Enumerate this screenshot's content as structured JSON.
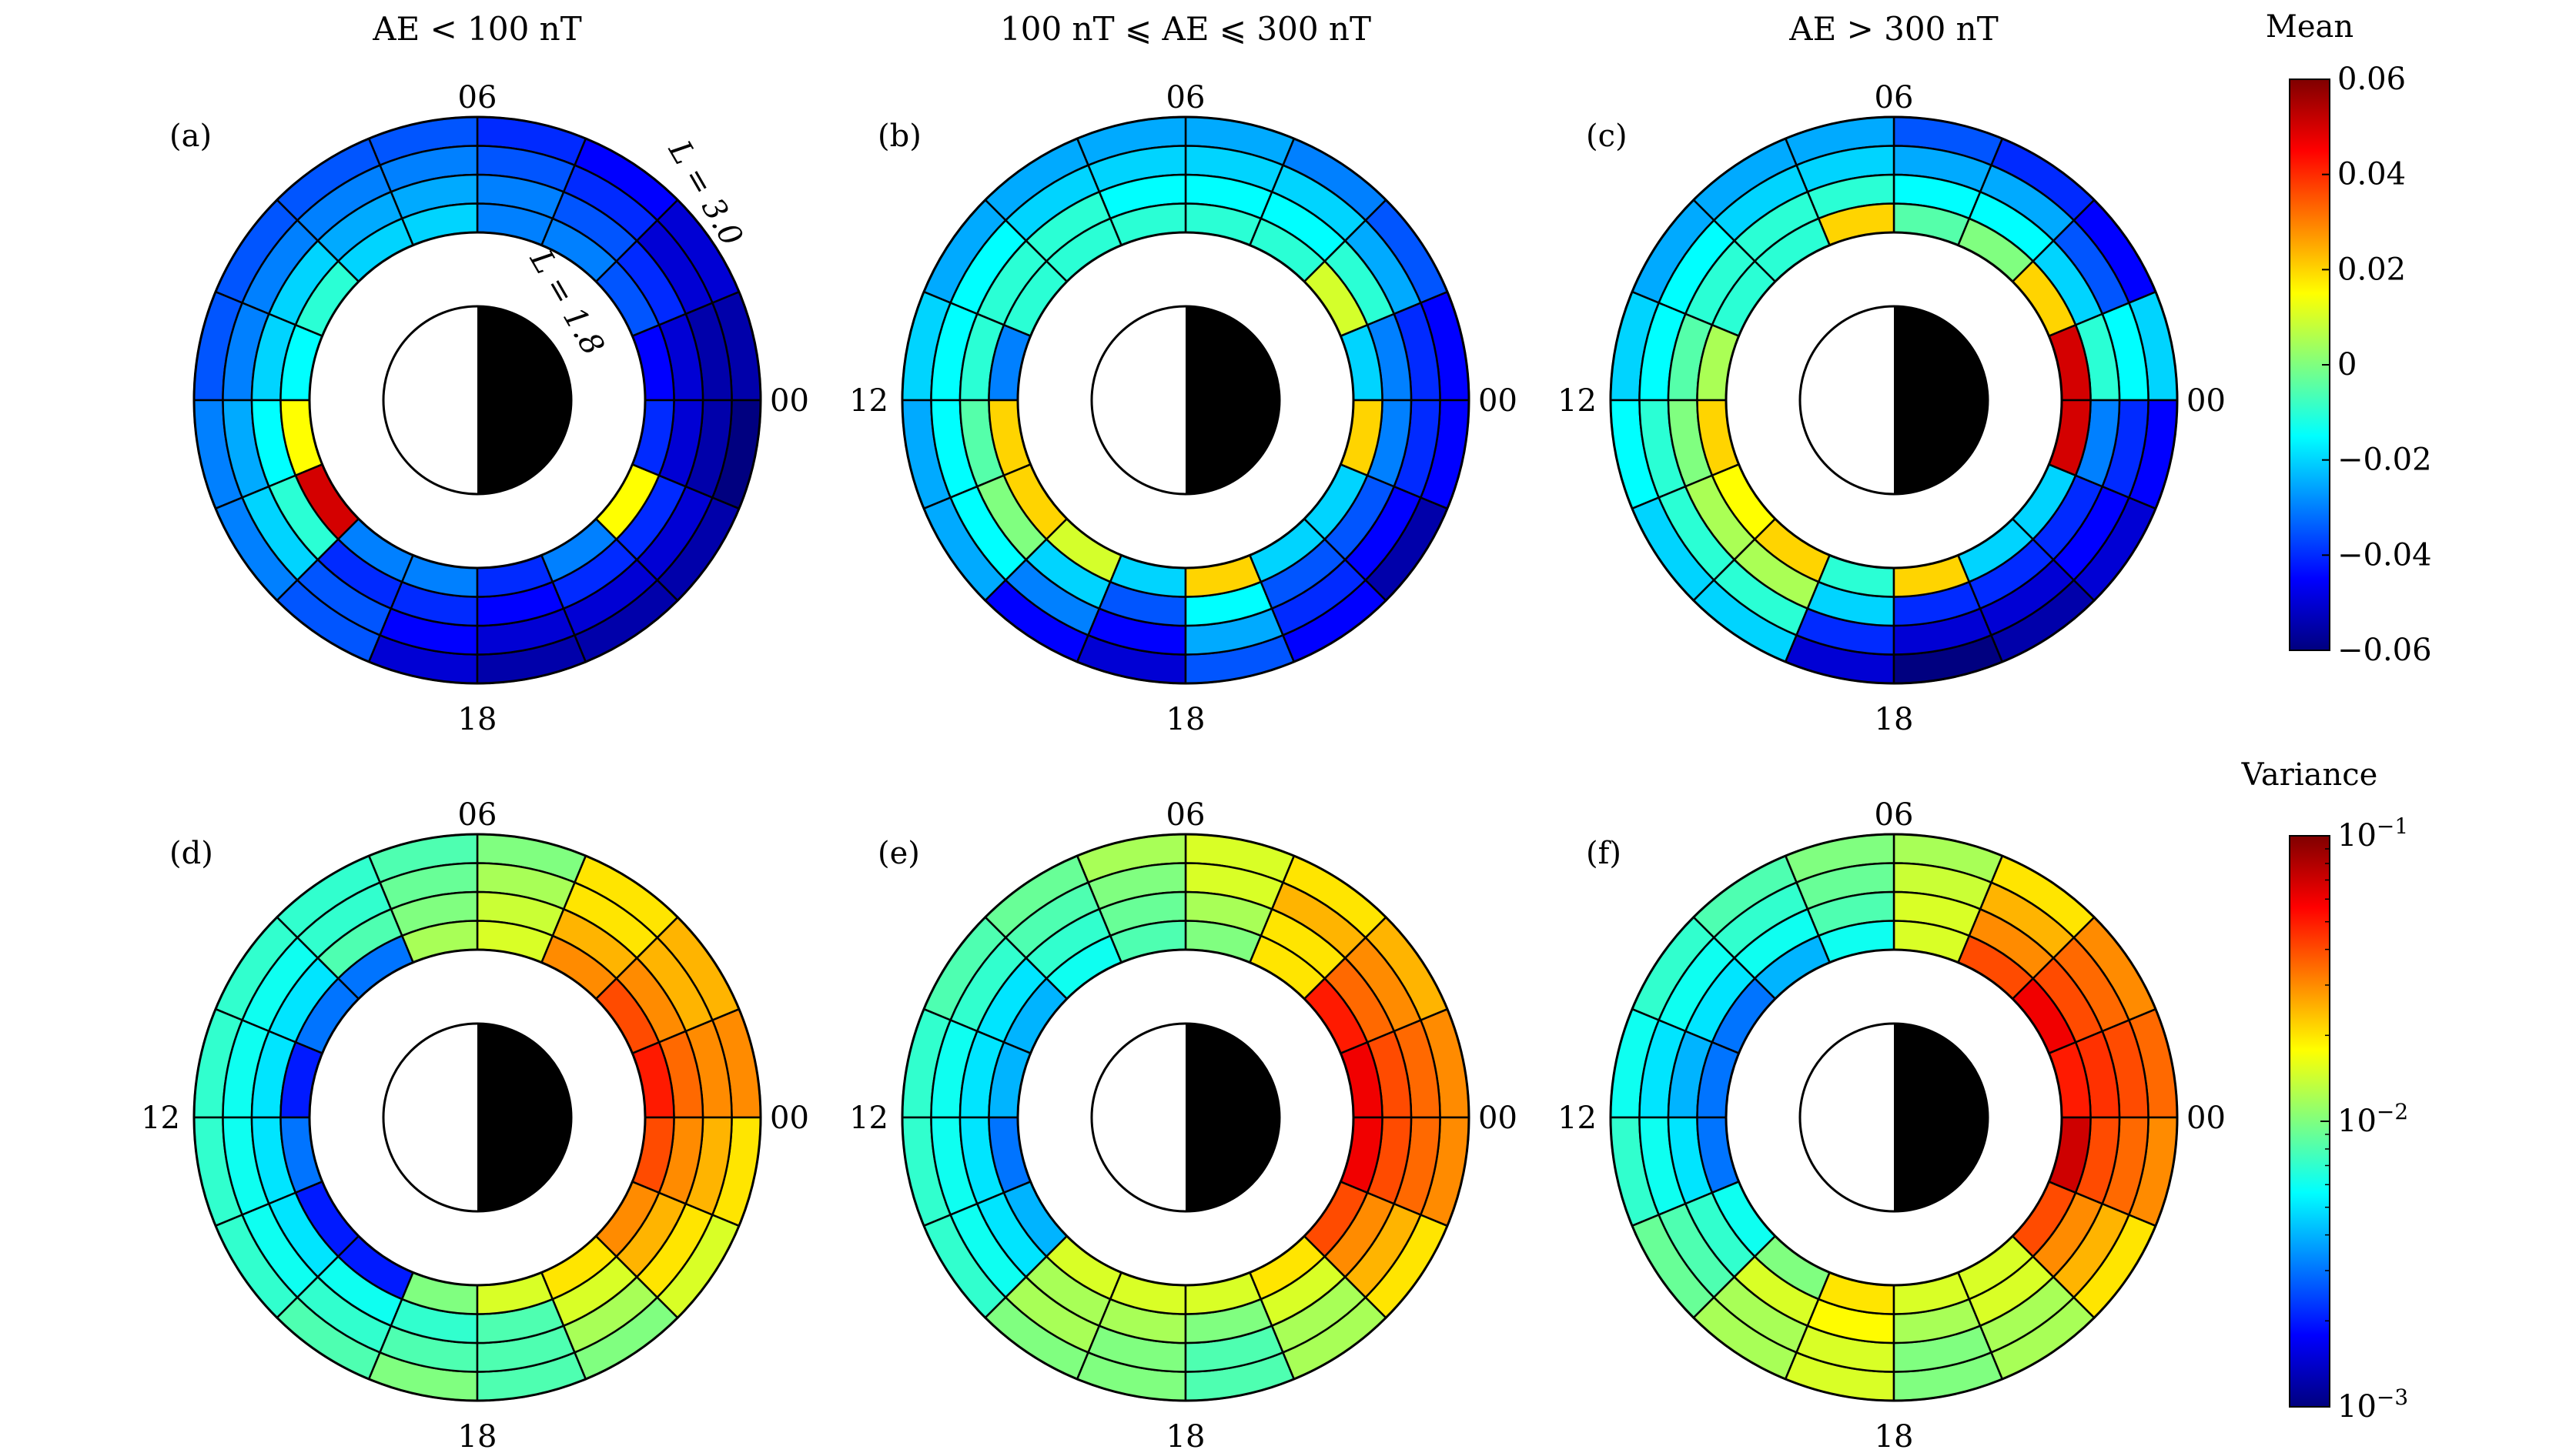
{
  "columns": [
    {
      "title": "AE < 100 nT"
    },
    {
      "title": "100 nT ⩽ AE ⩽ 300 nT"
    },
    {
      "title": "AE > 300 nT"
    }
  ],
  "colorbars": {
    "mean": {
      "label": "Mean",
      "ticks": [
        "0.06",
        "0.04",
        "0.02",
        "0",
        "−0.02",
        "−0.04",
        "−0.06"
      ]
    },
    "variance": {
      "label": "Variance",
      "ticks": [
        {
          "base": "10",
          "exp": "−1"
        },
        {
          "base": "10",
          "exp": "−2"
        },
        {
          "base": "10",
          "exp": "−3"
        }
      ]
    }
  },
  "annotations": {
    "outer_l": "L = 3.0",
    "inner_l": "L = 1.8"
  },
  "chart_data": [
    {
      "panel": "(a)",
      "type": "heatmap",
      "projection": "polar-MLT-L",
      "mlt_labels": {
        "top": "06",
        "left": "",
        "right": "00",
        "bottom": "18"
      },
      "l_range": [
        1.8,
        3.0
      ],
      "mlt_bins": 16,
      "l_bins": 4,
      "scale": "mean",
      "values": [
        [
          -0.055,
          -0.055,
          -0.05,
          -0.045
        ],
        [
          -0.05,
          -0.05,
          -0.04,
          -0.035
        ],
        [
          -0.045,
          -0.04,
          -0.035,
          -0.03
        ],
        [
          -0.04,
          -0.035,
          -0.03,
          -0.03
        ],
        [
          -0.035,
          -0.03,
          -0.025,
          -0.02
        ],
        [
          -0.035,
          -0.03,
          -0.025,
          -0.02
        ],
        [
          -0.035,
          -0.03,
          -0.02,
          -0.01
        ],
        [
          -0.035,
          -0.03,
          -0.02,
          -0.015
        ],
        [
          -0.03,
          -0.025,
          -0.015,
          0.015
        ],
        [
          -0.03,
          -0.02,
          -0.01,
          0.05
        ],
        [
          -0.035,
          -0.035,
          -0.04,
          -0.03
        ],
        [
          -0.05,
          -0.045,
          -0.04,
          -0.03
        ],
        [
          -0.055,
          -0.05,
          -0.045,
          -0.04
        ],
        [
          -0.055,
          -0.05,
          -0.04,
          -0.03
        ],
        [
          -0.055,
          -0.05,
          -0.04,
          0.015
        ],
        [
          -0.06,
          -0.055,
          -0.05,
          -0.04
        ]
      ]
    },
    {
      "panel": "(b)",
      "type": "heatmap",
      "projection": "polar-MLT-L",
      "mlt_labels": {
        "top": "06",
        "left": "12",
        "right": "00",
        "bottom": "18"
      },
      "l_range": [
        1.8,
        3.0
      ],
      "mlt_bins": 16,
      "l_bins": 4,
      "scale": "mean",
      "values": [
        [
          -0.045,
          -0.04,
          -0.03,
          -0.02
        ],
        [
          -0.035,
          -0.025,
          -0.01,
          0.01
        ],
        [
          -0.03,
          -0.02,
          -0.015,
          -0.01
        ],
        [
          -0.025,
          -0.02,
          -0.015,
          -0.01
        ],
        [
          -0.025,
          -0.02,
          -0.015,
          -0.01
        ],
        [
          -0.025,
          -0.02,
          -0.01,
          -0.01
        ],
        [
          -0.025,
          -0.015,
          -0.01,
          -0.01
        ],
        [
          -0.02,
          -0.015,
          -0.01,
          -0.03
        ],
        [
          -0.025,
          -0.015,
          -0.005,
          0.02
        ],
        [
          -0.025,
          -0.015,
          0.0,
          0.02
        ],
        [
          -0.045,
          -0.03,
          -0.02,
          0.01
        ],
        [
          -0.05,
          -0.045,
          -0.035,
          -0.02
        ],
        [
          -0.035,
          -0.025,
          -0.015,
          0.02
        ],
        [
          -0.045,
          -0.04,
          -0.035,
          -0.02
        ],
        [
          -0.055,
          -0.045,
          -0.035,
          -0.02
        ],
        [
          -0.045,
          -0.04,
          -0.03,
          0.02
        ]
      ]
    },
    {
      "panel": "(c)",
      "type": "heatmap",
      "projection": "polar-MLT-L",
      "mlt_labels": {
        "top": "06",
        "left": "12",
        "right": "00",
        "bottom": "18"
      },
      "l_range": [
        1.8,
        3.0
      ],
      "mlt_bins": 16,
      "l_bins": 4,
      "scale": "mean",
      "values": [
        [
          -0.02,
          -0.015,
          -0.01,
          0.05
        ],
        [
          -0.045,
          -0.035,
          -0.02,
          0.02
        ],
        [
          -0.04,
          -0.025,
          -0.015,
          0.0
        ],
        [
          -0.035,
          -0.025,
          -0.015,
          -0.005
        ],
        [
          -0.025,
          -0.02,
          -0.01,
          0.02
        ],
        [
          -0.025,
          -0.02,
          -0.01,
          -0.01
        ],
        [
          -0.025,
          -0.015,
          -0.01,
          -0.01
        ],
        [
          -0.02,
          -0.015,
          -0.005,
          0.005
        ],
        [
          -0.015,
          -0.01,
          0.0,
          0.02
        ],
        [
          -0.02,
          -0.01,
          0.005,
          0.015
        ],
        [
          -0.02,
          -0.01,
          0.005,
          0.02
        ],
        [
          -0.05,
          -0.04,
          -0.02,
          -0.01
        ],
        [
          -0.06,
          -0.05,
          -0.04,
          0.02
        ],
        [
          -0.055,
          -0.05,
          -0.04,
          -0.02
        ],
        [
          -0.05,
          -0.045,
          -0.04,
          -0.02
        ],
        [
          -0.045,
          -0.04,
          -0.03,
          0.05
        ]
      ]
    },
    {
      "panel": "(d)",
      "type": "heatmap",
      "projection": "polar-MLT-L",
      "mlt_labels": {
        "top": "06",
        "left": "12",
        "right": "00",
        "bottom": "18"
      },
      "l_range": [
        1.8,
        3.0
      ],
      "mlt_bins": 16,
      "l_bins": 4,
      "scale": "variance",
      "values": [
        [
          0.03,
          0.03,
          0.035,
          0.05
        ],
        [
          0.025,
          0.025,
          0.03,
          0.04
        ],
        [
          0.02,
          0.02,
          0.025,
          0.03
        ],
        [
          0.01,
          0.012,
          0.014,
          0.015
        ],
        [
          0.008,
          0.009,
          0.01,
          0.012
        ],
        [
          0.007,
          0.007,
          0.008,
          0.003
        ],
        [
          0.007,
          0.006,
          0.005,
          0.003
        ],
        [
          0.007,
          0.006,
          0.005,
          0.002
        ],
        [
          0.007,
          0.006,
          0.005,
          0.003
        ],
        [
          0.007,
          0.006,
          0.005,
          0.002
        ],
        [
          0.008,
          0.007,
          0.006,
          0.002
        ],
        [
          0.01,
          0.008,
          0.007,
          0.01
        ],
        [
          0.008,
          0.008,
          0.008,
          0.015
        ],
        [
          0.01,
          0.012,
          0.015,
          0.02
        ],
        [
          0.015,
          0.02,
          0.025,
          0.03
        ],
        [
          0.02,
          0.025,
          0.03,
          0.04
        ]
      ]
    },
    {
      "panel": "(e)",
      "type": "heatmap",
      "projection": "polar-MLT-L",
      "mlt_labels": {
        "top": "06",
        "left": "12",
        "right": "00",
        "bottom": "18"
      },
      "l_range": [
        1.8,
        3.0
      ],
      "mlt_bins": 16,
      "l_bins": 4,
      "scale": "variance",
      "values": [
        [
          0.03,
          0.035,
          0.04,
          0.06
        ],
        [
          0.025,
          0.03,
          0.035,
          0.05
        ],
        [
          0.02,
          0.025,
          0.02,
          0.02
        ],
        [
          0.015,
          0.015,
          0.012,
          0.01
        ],
        [
          0.012,
          0.01,
          0.009,
          0.008
        ],
        [
          0.009,
          0.008,
          0.007,
          0.006
        ],
        [
          0.008,
          0.007,
          0.005,
          0.004
        ],
        [
          0.007,
          0.006,
          0.005,
          0.004
        ],
        [
          0.007,
          0.006,
          0.005,
          0.003
        ],
        [
          0.007,
          0.006,
          0.005,
          0.004
        ],
        [
          0.01,
          0.012,
          0.012,
          0.015
        ],
        [
          0.01,
          0.01,
          0.012,
          0.015
        ],
        [
          0.008,
          0.008,
          0.01,
          0.015
        ],
        [
          0.012,
          0.012,
          0.015,
          0.02
        ],
        [
          0.02,
          0.025,
          0.03,
          0.04
        ],
        [
          0.03,
          0.035,
          0.04,
          0.06
        ]
      ]
    },
    {
      "panel": "(f)",
      "type": "heatmap",
      "projection": "polar-MLT-L",
      "mlt_labels": {
        "top": "06",
        "left": "12",
        "right": "00",
        "bottom": "18"
      },
      "l_range": [
        1.8,
        3.0
      ],
      "mlt_bins": 16,
      "l_bins": 4,
      "scale": "variance",
      "values": [
        [
          0.035,
          0.04,
          0.045,
          0.05
        ],
        [
          0.03,
          0.035,
          0.04,
          0.06
        ],
        [
          0.02,
          0.025,
          0.03,
          0.04
        ],
        [
          0.012,
          0.014,
          0.015,
          0.015
        ],
        [
          0.01,
          0.009,
          0.008,
          0.006
        ],
        [
          0.008,
          0.007,
          0.006,
          0.004
        ],
        [
          0.007,
          0.006,
          0.005,
          0.003
        ],
        [
          0.006,
          0.005,
          0.004,
          0.003
        ],
        [
          0.007,
          0.006,
          0.005,
          0.003
        ],
        [
          0.009,
          0.008,
          0.007,
          0.006
        ],
        [
          0.012,
          0.012,
          0.015,
          0.01
        ],
        [
          0.015,
          0.015,
          0.018,
          0.02
        ],
        [
          0.01,
          0.01,
          0.012,
          0.015
        ],
        [
          0.012,
          0.012,
          0.015,
          0.015
        ],
        [
          0.02,
          0.025,
          0.03,
          0.04
        ],
        [
          0.03,
          0.035,
          0.04,
          0.07
        ]
      ]
    }
  ]
}
